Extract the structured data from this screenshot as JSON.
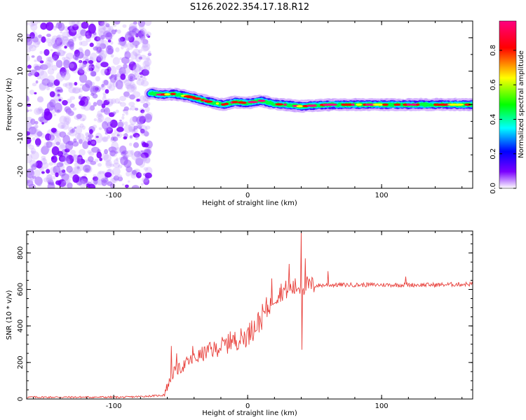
{
  "title": "S126.2022.354.17.18.R12",
  "chart_data": [
    {
      "type": "heatmap",
      "name": "spectrogram",
      "xlabel": "Height of straight line (km)",
      "ylabel": "Frequency (Hz)",
      "xlim": [
        -165,
        168
      ],
      "ylim": [
        -25,
        25
      ],
      "xticks": [
        -100,
        0,
        100
      ],
      "yticks": [
        -20,
        -10,
        0,
        10,
        20
      ],
      "colorbar": {
        "label": "Normalized spectral amplitude",
        "range": [
          0,
          0.97
        ],
        "ticks": [
          0.0,
          0.2,
          0.4,
          0.6,
          0.8
        ],
        "tick_labels": [
          "0.0",
          "0.2",
          "0.4",
          "0.6",
          "0.8"
        ],
        "colormap": [
          "#ffffff",
          "#7a00ff",
          "#0000ff",
          "#00ffff",
          "#00ff00",
          "#ffff00",
          "#ff0000",
          "#ff0080"
        ]
      },
      "noise_region_x": [
        -165,
        -75
      ],
      "signal_ridge": {
        "x": [
          -73,
          -65,
          -55,
          -45,
          -35,
          -25,
          -18,
          -10,
          0,
          10,
          20,
          28,
          40,
          60,
          80,
          100,
          120,
          140,
          168
        ],
        "freq": [
          3.5,
          3.0,
          3.2,
          2.5,
          1.5,
          0.5,
          0.0,
          0.8,
          0.5,
          1.2,
          0.2,
          0.0,
          -0.5,
          0.0,
          0.0,
          0.0,
          0.0,
          0.0,
          0.0
        ]
      }
    },
    {
      "type": "line",
      "name": "snr",
      "xlabel": "Height of straight line (km)",
      "ylabel": "SNR (10 * v/v)",
      "xlim": [
        -165,
        168
      ],
      "ylim": [
        0,
        920
      ],
      "xticks": [
        -100,
        0,
        100
      ],
      "yticks": [
        0,
        200,
        400,
        600,
        800
      ],
      "color": "#e8413c",
      "series": [
        {
          "x": [
            -165,
            -90,
            -63,
            -58,
            -55,
            -50,
            -45,
            -40,
            -35,
            -30,
            -25,
            -20,
            -15,
            -10,
            -5,
            0,
            5,
            10,
            15,
            20,
            25,
            30,
            35,
            40,
            45,
            50,
            60,
            80,
            100,
            120,
            140,
            168
          ],
          "values": [
            10,
            10,
            20,
            100,
            150,
            170,
            200,
            220,
            240,
            260,
            270,
            290,
            300,
            320,
            330,
            350,
            390,
            440,
            500,
            560,
            590,
            600,
            610,
            620,
            620,
            620,
            625,
            625,
            625,
            625,
            625,
            630
          ],
          "peaks": [
            {
              "x": -57,
              "y": 290
            },
            {
              "x": -53,
              "y": 250
            },
            {
              "x": -41,
              "y": 290
            },
            {
              "x": -28,
              "y": 310
            },
            {
              "x": -13,
              "y": 370
            },
            {
              "x": 3,
              "y": 430
            },
            {
              "x": 18,
              "y": 660
            },
            {
              "x": 31,
              "y": 740
            },
            {
              "x": 40,
              "y": 920
            },
            {
              "x": 40.5,
              "y": 270
            },
            {
              "x": 43,
              "y": 770
            },
            {
              "x": 60,
              "y": 700
            },
            {
              "x": 118,
              "y": 670
            }
          ]
        }
      ]
    }
  ]
}
